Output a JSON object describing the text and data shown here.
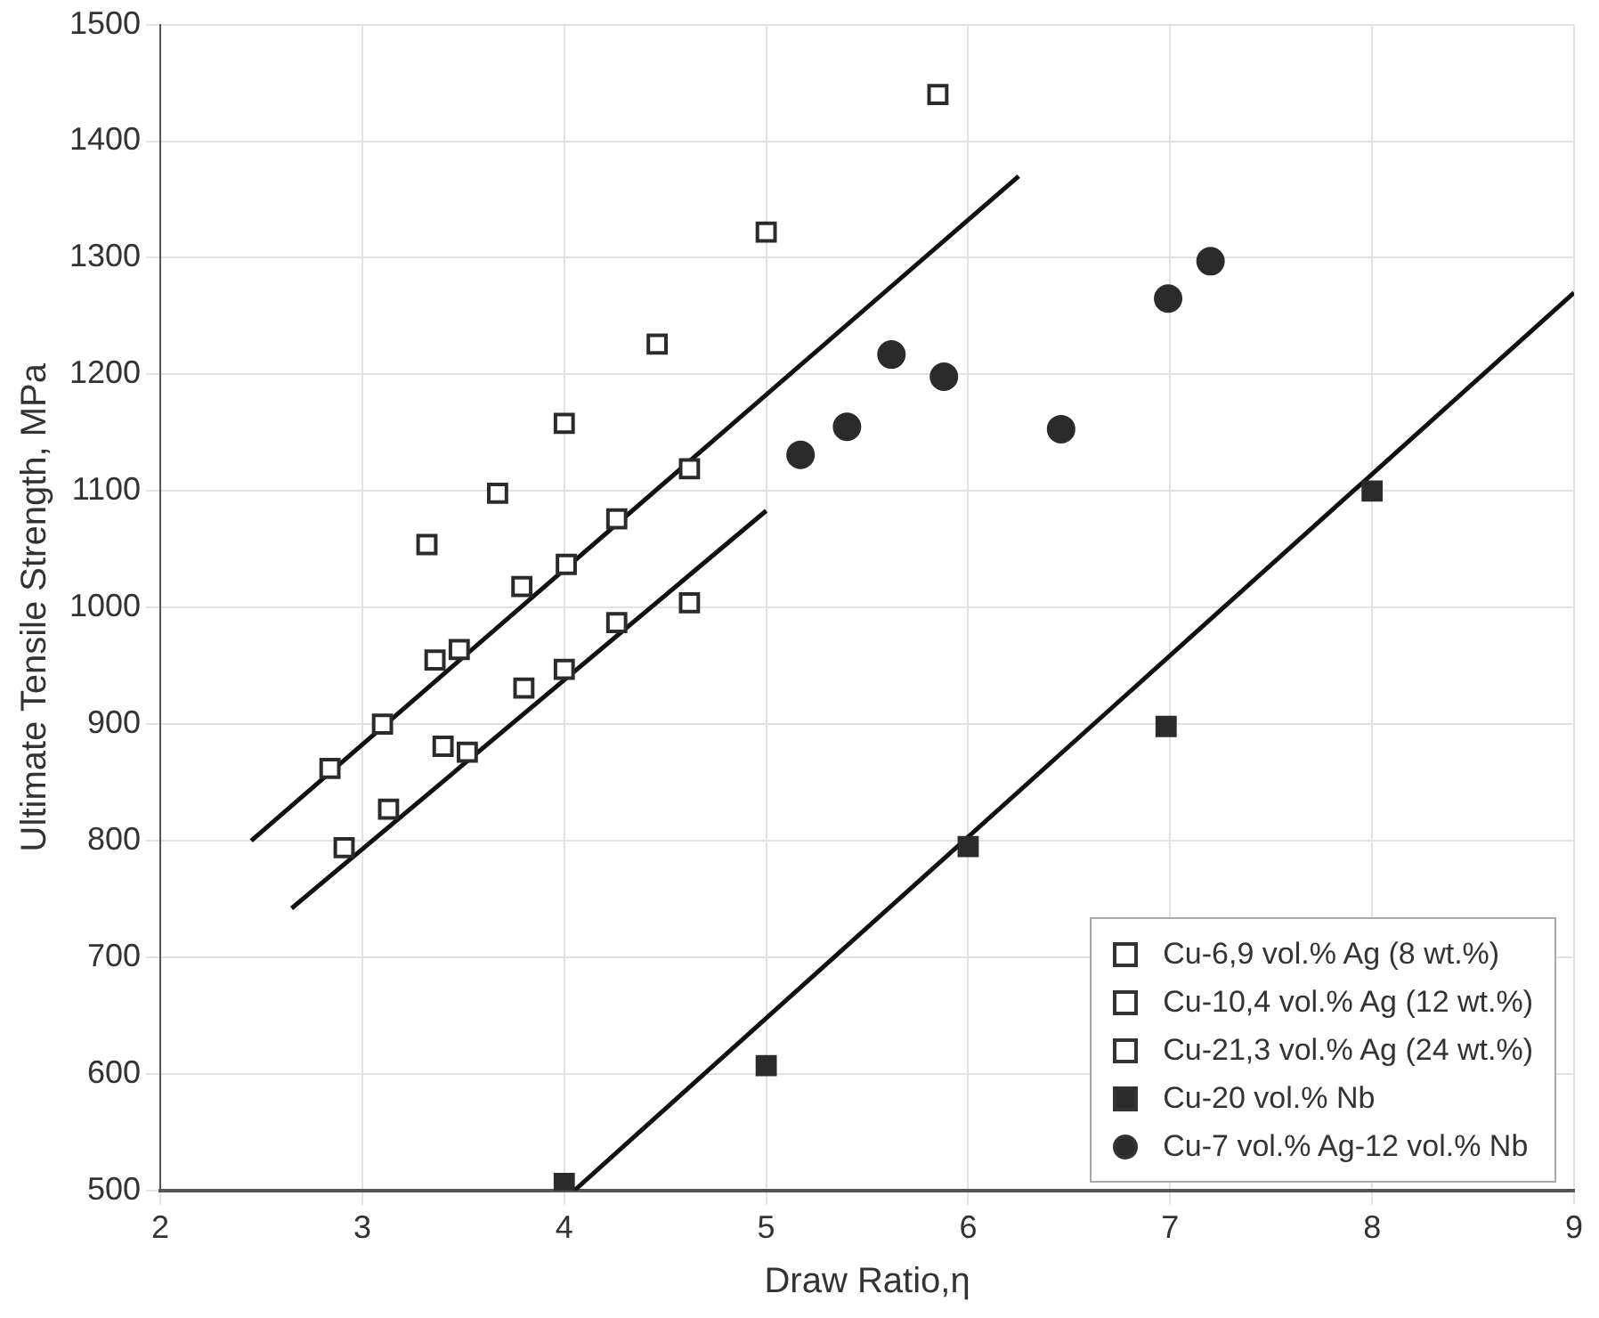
{
  "chart_data": {
    "type": "scatter",
    "xlabel": "Draw Ratio,η",
    "ylabel": "Ultimate Tensile Strength, MPa",
    "xlim": [
      2,
      9
    ],
    "xticks": [
      2,
      3,
      4,
      5,
      6,
      7,
      8,
      9
    ],
    "ylim": [
      500,
      1500
    ],
    "yticks": [
      500,
      600,
      700,
      800,
      900,
      1000,
      1100,
      1200,
      1300,
      1400,
      1500
    ],
    "grid": true,
    "legend": "bottom right",
    "series": [
      {
        "name": "Cu-6,9 vol.% Ag (8 wt.%)",
        "color": "#ffffff",
        "marker": "square",
        "x": [
          2.91,
          3.13,
          3.4,
          3.52,
          3.8,
          4.0,
          4.26,
          4.62
        ],
        "values": [
          794,
          827,
          881,
          876,
          931,
          947,
          987,
          1004
        ]
      },
      {
        "name": "Cu-10,4 vol.% Ag (12 wt.%)",
        "color": "#ffffff",
        "marker": "square",
        "x": [
          2.84,
          3.1,
          3.36,
          3.48,
          3.79,
          4.01,
          4.26,
          4.62
        ],
        "values": [
          862,
          900,
          955,
          964,
          1018,
          1037,
          1076,
          1119
        ]
      },
      {
        "name": "Cu-21,3 vol.% Ag (24 wt.%)",
        "color": "#ffffff",
        "marker": "square",
        "x": [
          3.32,
          3.67,
          4.0,
          4.46,
          5.0,
          5.85
        ],
        "values": [
          1054,
          1098,
          1158,
          1226,
          1322,
          1440
        ]
      },
      {
        "name": "Cu-20 vol.% Nb",
        "color": "#2b2b2b",
        "marker": "square",
        "x": [
          4.0,
          5.0,
          6.0,
          6.98,
          8.0
        ],
        "values": [
          506,
          607,
          795,
          898,
          1100
        ]
      },
      {
        "name": "Cu-7 vol.% Ag-12 vol.% Nb",
        "color": "#2b2b2b",
        "marker": "circle",
        "x": [
          5.17,
          5.4,
          5.62,
          5.88,
          6.46,
          6.99,
          7.2
        ],
        "values": [
          1131,
          1155,
          1217,
          1198,
          1153,
          1265,
          1297
        ]
      },
      {
        "type": "line",
        "color": "#111111",
        "marker": "none",
        "x": [
          2.45,
          6.25
        ],
        "values": [
          800,
          1370
        ]
      },
      {
        "type": "line",
        "color": "#111111",
        "marker": "none",
        "x": [
          2.65,
          5.0
        ],
        "values": [
          742,
          1083
        ]
      },
      {
        "type": "line",
        "color": "#111111",
        "marker": "none",
        "x": [
          4.05,
          9.0
        ],
        "values": [
          500,
          1270
        ]
      }
    ]
  }
}
